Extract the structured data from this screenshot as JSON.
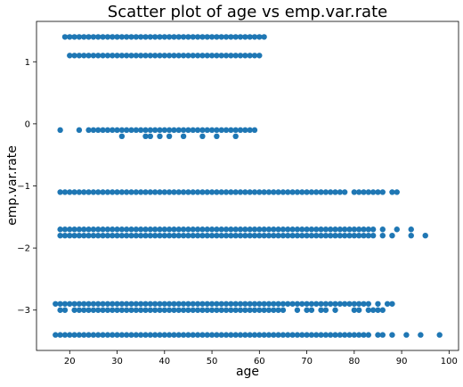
{
  "chart_data": {
    "type": "scatter",
    "title": "Scatter plot of age vs emp.var.rate",
    "xlabel": "age",
    "ylabel": "emp.var.rate",
    "xlim": [
      13,
      102
    ],
    "ylim": [
      -3.65,
      1.65
    ],
    "xticks": [
      20,
      30,
      40,
      50,
      60,
      70,
      80,
      90,
      100
    ],
    "xtick_labels": [
      "20",
      "30",
      "40",
      "50",
      "60",
      "70",
      "80",
      "90",
      "100"
    ],
    "yticks": [
      -3,
      -2,
      -1,
      0,
      1
    ],
    "ytick_labels": [
      "−3",
      "−2",
      "−1",
      "0",
      "1"
    ],
    "grid": false,
    "legend": "none",
    "marker_color": "#1f77b4",
    "series": [
      {
        "points": [
          {
            "emp_var_rate": 1.4,
            "age_ranges": [
              [
                19,
                60
              ]
            ],
            "extra_ages": [
              61
            ]
          },
          {
            "emp_var_rate": 1.1,
            "age_ranges": [
              [
                20,
                60
              ]
            ],
            "extra_ages": []
          },
          {
            "emp_var_rate": -0.1,
            "age_ranges": [
              [
                24,
                59
              ]
            ],
            "extra_ages": [
              18,
              22
            ]
          },
          {
            "emp_var_rate": -0.2,
            "age_ranges": [],
            "extra_ages": [
              31,
              36,
              37,
              39,
              41,
              44,
              48,
              51,
              55
            ]
          },
          {
            "emp_var_rate": -1.1,
            "age_ranges": [
              [
                18,
                78
              ]
            ],
            "extra_ages": [
              80,
              81,
              82,
              83,
              84,
              85,
              86,
              88,
              89
            ]
          },
          {
            "emp_var_rate": -1.7,
            "age_ranges": [
              [
                18,
                84
              ]
            ],
            "extra_ages": [
              86,
              89,
              92
            ]
          },
          {
            "emp_var_rate": -1.8,
            "age_ranges": [
              [
                18,
                84
              ]
            ],
            "extra_ages": [
              86,
              88,
              92,
              95
            ]
          },
          {
            "emp_var_rate": -2.9,
            "age_ranges": [
              [
                17,
                83
              ]
            ],
            "extra_ages": [
              85,
              87,
              88
            ]
          },
          {
            "emp_var_rate": -3.0,
            "age_ranges": [
              [
                21,
                65
              ]
            ],
            "extra_ages": [
              18,
              19,
              68,
              70,
              71,
              73,
              74,
              76,
              80,
              81,
              83,
              84,
              85,
              86
            ]
          },
          {
            "emp_var_rate": -3.4,
            "age_ranges": [
              [
                17,
                83
              ]
            ],
            "extra_ages": [
              85,
              86,
              88,
              91,
              94,
              98
            ]
          }
        ]
      }
    ]
  }
}
